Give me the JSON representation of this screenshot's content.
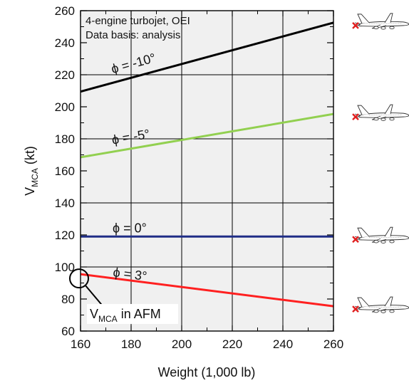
{
  "chart_data": {
    "type": "line",
    "xlabel": "Weight (1,000 lb)",
    "ylabel_main": "V",
    "ylabel_sub": "MCA",
    "ylabel_unit": " (kt)",
    "xlim": [
      160,
      260
    ],
    "ylim": [
      60,
      260
    ],
    "xticks": [
      160,
      180,
      200,
      220,
      240,
      260
    ],
    "yticks": [
      60,
      80,
      100,
      120,
      140,
      160,
      180,
      200,
      220,
      240,
      260
    ],
    "grid": true,
    "notes": [
      "4-engine turbojet, OEI",
      "Data basis: analysis"
    ],
    "series": [
      {
        "name": "ϕ = -10°",
        "color": "#000000",
        "x": [
          160,
          260
        ],
        "y": [
          209.5,
          252.5
        ]
      },
      {
        "name": "ϕ = -5°",
        "color": "#92d050",
        "x": [
          160,
          260
        ],
        "y": [
          168.5,
          195.5
        ]
      },
      {
        "name": "ϕ = 0°",
        "color": "#1f2d86",
        "x": [
          160,
          260
        ],
        "y": [
          119,
          119
        ]
      },
      {
        "name": "ϕ = 3°",
        "color": "#ff2020",
        "x": [
          160,
          260
        ],
        "y": [
          95.5,
          75.5
        ]
      }
    ],
    "annotation": {
      "main": "V",
      "sub": "MCA",
      "rest": " in AFM",
      "x": 160,
      "y": 95.5
    },
    "side_icons": [
      {
        "icon": "airplane-engine-out-icon",
        "series": "ϕ = -10°"
      },
      {
        "icon": "airplane-engine-out-icon",
        "series": "ϕ = -5°"
      },
      {
        "icon": "airplane-engine-out-icon",
        "series": "ϕ = 0°"
      },
      {
        "icon": "airplane-engine-out-icon",
        "series": "ϕ = 3°"
      }
    ],
    "plot_background": "#f0f0f0",
    "failed_engine_mark_color": "#e02020"
  }
}
